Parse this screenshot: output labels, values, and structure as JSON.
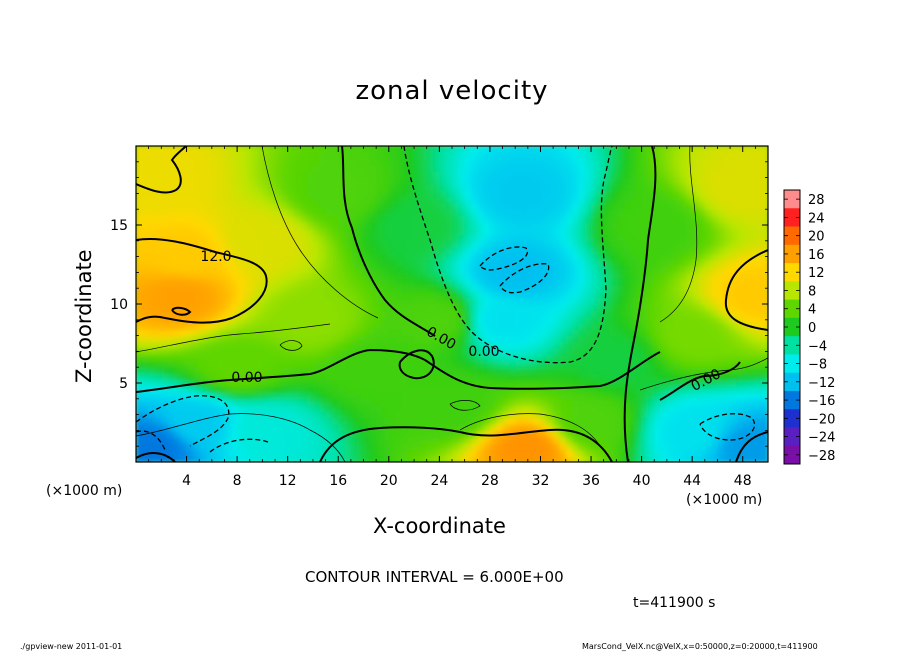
{
  "chart_data": {
    "type": "heatmap",
    "title": "zonal velocity",
    "xlabel": "X-coordinate",
    "ylabel": "Z-coordinate",
    "x_unit_left": "(×1000 m)",
    "x_unit_right": "(×1000 m)",
    "xlim": [
      0,
      50
    ],
    "ylim": [
      0,
      20
    ],
    "x_ticks": [
      4,
      8,
      12,
      16,
      20,
      24,
      28,
      32,
      36,
      40,
      44,
      48
    ],
    "y_ticks": [
      5,
      10,
      15
    ],
    "colorbar": {
      "levels": [
        28,
        24,
        20,
        16,
        12,
        8,
        4,
        0,
        -4,
        -8,
        -12,
        -16,
        -20,
        -24,
        -28
      ],
      "labels": [
        "28",
        "24",
        "20",
        "16",
        "12",
        "8",
        "4",
        "0",
        "−4",
        "−8",
        "−12",
        "−16",
        "−20",
        "−24",
        "−28"
      ],
      "colors": [
        "#ff8c8c",
        "#ff2020",
        "#ff6a00",
        "#ffa000",
        "#ffd800",
        "#b8e600",
        "#5fd600",
        "#1fca1f",
        "#00e0a0",
        "#00ecec",
        "#00c0f0",
        "#0078e0",
        "#1f30d0",
        "#5a1fc0",
        "#7a0fa8"
      ]
    },
    "contour_labels": [
      "12.0",
      "0.00",
      "0.00",
      "0.00",
      "0.00"
    ],
    "features": [
      {
        "x": 3.5,
        "z": 10.5,
        "value": 16
      },
      {
        "x": 4.0,
        "z": 13.0,
        "value": 13
      },
      {
        "x": 1.5,
        "z": 18.0,
        "value": 11
      },
      {
        "x": 10.0,
        "z": 14.0,
        "value": 10
      },
      {
        "x": 49.0,
        "z": 10.5,
        "value": 13
      },
      {
        "x": 48.0,
        "z": 17.5,
        "value": 10
      },
      {
        "x": 31.0,
        "z": 0.8,
        "value": 17
      },
      {
        "x": 30.0,
        "z": 12.0,
        "value": -12
      },
      {
        "x": 30.5,
        "z": 17.0,
        "value": -11
      },
      {
        "x": 29.0,
        "z": 9.0,
        "value": -9
      },
      {
        "x": 1.5,
        "z": 1.0,
        "value": -16
      },
      {
        "x": 5.0,
        "z": 2.5,
        "value": -11
      },
      {
        "x": 10.0,
        "z": 2.0,
        "value": -7
      },
      {
        "x": 44.0,
        "z": 2.0,
        "value": -9
      },
      {
        "x": 48.5,
        "z": 1.0,
        "value": -14
      },
      {
        "x": 19.0,
        "z": 6.0,
        "value": 2
      },
      {
        "x": 24.0,
        "z": 9.0,
        "value": 3
      },
      {
        "x": 38.0,
        "z": 6.5,
        "value": -1
      },
      {
        "x": 44.0,
        "z": 8.0,
        "value": 5
      },
      {
        "x": 14.0,
        "z": 9.0,
        "value": 6
      },
      {
        "x": 16.0,
        "z": 17.0,
        "value": 3
      },
      {
        "x": 22.0,
        "z": 15.0,
        "value": -1
      },
      {
        "x": 41.0,
        "z": 15.0,
        "value": 2
      },
      {
        "x": 8.0,
        "z": 6.0,
        "value": 4
      },
      {
        "x": 25.0,
        "z": 3.5,
        "value": 2
      },
      {
        "x": 36.0,
        "z": 2.5,
        "value": 3
      }
    ]
  },
  "annotations": {
    "contour_interval": "CONTOUR INTERVAL = 6.000E+00",
    "time": "t=411900 s",
    "footer_left": "./gpview-new   2011-01-01",
    "footer_right": "MarsCond_VelX.nc@VelX,x=0:50000,z=0:20000,t=411900"
  }
}
